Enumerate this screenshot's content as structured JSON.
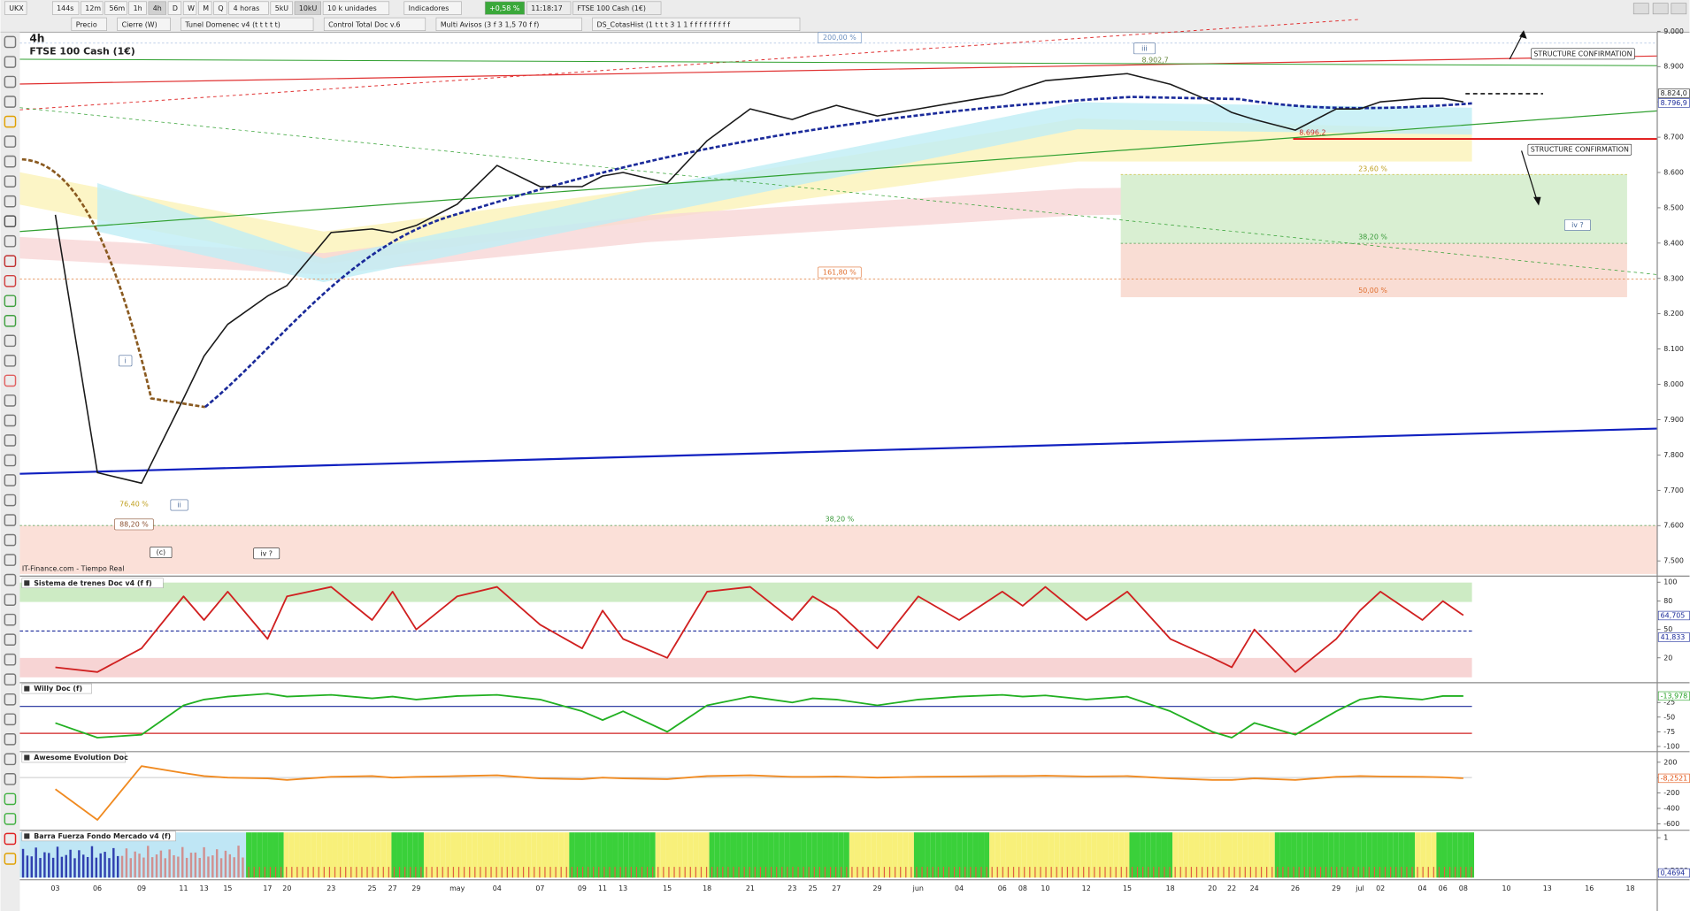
{
  "toolbar": {
    "symbol": "UKX",
    "periods": [
      "144s",
      "12m",
      "56m",
      "1h",
      "4h",
      "D",
      "W",
      "M",
      "Q"
    ],
    "timeframe": "4 horas",
    "units": [
      "5kU",
      "10kU"
    ],
    "unit_select": "10 k unidades",
    "indicators": "Indicadores",
    "change": "+0,58 %",
    "time": "11:18:17",
    "instrument": "FTSE 100 Cash (1€)",
    "studies": [
      "Precio",
      "Cierre (W)",
      "Tunel Domenec v4 (t t t t t)",
      "Control Total Doc v.6",
      "Multi Avisos (3 f 3 1,5 70 f f)",
      "DS_CotasHist (1 t t t 3 1 1 f f f f f f f f f"
    ]
  },
  "chart_data": [
    {
      "type": "line",
      "period_label": "4h",
      "title": "FTSE 100 Cash (1€)",
      "source": "IT-Finance.com - Tiempo Real",
      "color": "#1a1a1a",
      "categories": [
        "03",
        "06",
        "09",
        "11",
        "13",
        "15",
        "17",
        "20",
        "23",
        "25",
        "27",
        "29",
        "may",
        "04",
        "07",
        "09",
        "11",
        "13",
        "15",
        "18",
        "21",
        "23",
        "25",
        "27",
        "29",
        "jun",
        "04",
        "06",
        "08",
        "10",
        "12",
        "15",
        "18",
        "20",
        "22",
        "24",
        "26",
        "29",
        "jul",
        "02",
        "04",
        "06",
        "08",
        "10",
        "13",
        "16",
        "18"
      ],
      "values": [
        8480,
        7750,
        7720,
        7960,
        8080,
        8170,
        8250,
        8280,
        8430,
        8440,
        8430,
        8450,
        8510,
        8620,
        8560,
        8560,
        8590,
        8600,
        8570,
        8690,
        8780,
        8750,
        8770,
        8790,
        8760,
        8780,
        8800,
        8820,
        8840,
        8860,
        8870,
        8880,
        8850,
        8800,
        8770,
        8750,
        8720,
        8780,
        8780,
        8800,
        8810,
        8810,
        8800,
        null,
        null,
        null,
        null
      ],
      "ylim": [
        7463,
        8997
      ],
      "yticks": [
        {
          "value": 9000,
          "label": "9.000"
        },
        {
          "value": 8900,
          "label": "8.900"
        },
        {
          "value": 8800,
          "label": "8.800"
        },
        {
          "value": 8700,
          "label": "8.700"
        },
        {
          "value": 8600,
          "label": "8.600"
        },
        {
          "value": 8500,
          "label": "8.500"
        },
        {
          "value": 8400,
          "label": "8.400"
        },
        {
          "value": 8300,
          "label": "8.300"
        },
        {
          "value": 8200,
          "label": "8.200"
        },
        {
          "value": 8100,
          "label": "8.100"
        },
        {
          "value": 8000,
          "label": "8.000"
        },
        {
          "value": 7900,
          "label": "7.900"
        },
        {
          "value": 7800,
          "label": "7.800"
        },
        {
          "value": 7700,
          "label": "7.700"
        },
        {
          "value": 7600,
          "label": "7.600"
        },
        {
          "value": 7500,
          "label": "7.500"
        }
      ],
      "last_labels": [
        {
          "value": 8824.0,
          "label": "8.824,0"
        },
        {
          "value": 8796.9,
          "label": "8.796,9"
        }
      ],
      "annotations": [
        "200,00 %",
        "161,80 %",
        "38,20 %",
        "23,60 %",
        "38,20 %",
        "50,00 %",
        "76,40 %",
        "88,20 %",
        "8.902,7",
        "8.696,2",
        "STRUCTURE CONFIRMATION",
        "STRUCTURE CONFIRMATION",
        "i",
        "ii",
        "iii",
        "iv ?",
        "(c)",
        "iv ?"
      ]
    },
    {
      "type": "line",
      "title": "Sistema de trenes Doc v4 (f f)",
      "color": "#d02020",
      "ylim": [
        -4,
        103
      ],
      "yticks": [
        100,
        80,
        50,
        20
      ],
      "values": [
        10,
        5,
        30,
        85,
        60,
        90,
        40,
        85,
        95,
        60,
        90,
        50,
        85,
        95,
        55,
        30,
        70,
        40,
        20,
        90,
        95,
        60,
        85,
        70,
        30,
        85,
        60,
        90,
        75,
        95,
        60,
        90,
        40,
        20,
        10,
        50,
        5,
        40,
        70,
        90,
        60,
        80,
        65,
        null,
        null,
        null,
        null
      ],
      "last_labels": [
        {
          "value": 64.705,
          "label": "64,705"
        },
        {
          "value": 41.833,
          "label": "41,833"
        }
      ]
    },
    {
      "type": "line",
      "title": "Willy Doc (f)",
      "color": "#22b022",
      "ylim": [
        -107,
        5
      ],
      "yticks": [
        -25,
        -50,
        -75,
        -100
      ],
      "values": [
        -60,
        -85,
        -80,
        -30,
        -20,
        -15,
        -10,
        -15,
        -12,
        -18,
        -15,
        -20,
        -14,
        -12,
        -20,
        -40,
        -55,
        -40,
        -75,
        -30,
        -15,
        -25,
        -18,
        -20,
        -30,
        -20,
        -15,
        -12,
        -15,
        -13,
        -20,
        -15,
        -40,
        -75,
        -85,
        -60,
        -80,
        -40,
        -20,
        -15,
        -20,
        -14,
        -14,
        null,
        null,
        null,
        null
      ],
      "last_labels": [
        {
          "value": -13.978,
          "label": "-13,978"
        }
      ]
    },
    {
      "type": "line",
      "title": "Awesome Evolution Doc",
      "color": "#f08a20",
      "ylim": [
        -670,
        310
      ],
      "yticks": [
        200,
        0,
        -200,
        -400,
        -600
      ],
      "values": [
        -150,
        -550,
        150,
        60,
        20,
        0,
        -10,
        -30,
        10,
        20,
        0,
        10,
        20,
        30,
        -10,
        -20,
        0,
        -10,
        -20,
        20,
        30,
        10,
        10,
        15,
        0,
        10,
        15,
        20,
        20,
        25,
        15,
        20,
        -10,
        -30,
        -30,
        -10,
        -30,
        10,
        20,
        15,
        10,
        5,
        -8,
        null,
        null,
        null,
        null
      ],
      "last_labels": [
        {
          "value": -8.2521,
          "label": "-8,2521"
        }
      ]
    },
    {
      "type": "stripes",
      "title": "Barra Fuerza Fondo Mercado v4 (f)",
      "ylim": [
        0.4,
        1.08
      ],
      "yticks": [
        1,
        {
          "value": 0.5,
          "label": "0,5000"
        }
      ],
      "last_labels": [
        {
          "value": 0.4694,
          "label": "0,4694"
        }
      ]
    }
  ]
}
